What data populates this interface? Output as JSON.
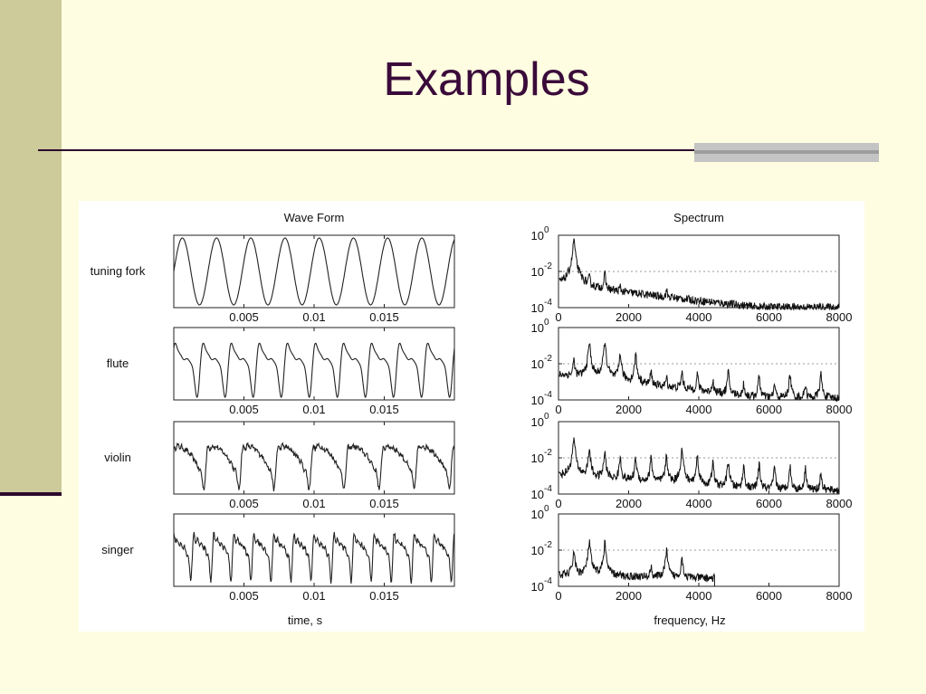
{
  "slide": {
    "title": "Examples",
    "colors": {
      "background": "#fefde1",
      "sidebar": "#cccb99",
      "title": "#3a0b3a"
    }
  },
  "chart_data": [
    {
      "type": "line",
      "title": "Wave Form",
      "xlabel": "time, s",
      "xlim": [
        0,
        0.02
      ],
      "xticks": [
        "0.005",
        "0.01",
        "0.015"
      ],
      "xtick_values": [
        0.005,
        0.01,
        0.015
      ],
      "rows": [
        {
          "label": "tuning fork",
          "cycles": 8.2,
          "harmonics": [
            1
          ]
        },
        {
          "label": "flute",
          "cycles": 10,
          "harmonics": [
            1,
            0.8,
            0.35,
            0.15
          ]
        },
        {
          "label": "violin",
          "cycles": 8,
          "harmonics": [
            1,
            0.5,
            0.33,
            0.25,
            0.2,
            0.16,
            0.14
          ]
        },
        {
          "label": "singer",
          "cycles": 14,
          "harmonics": [
            1,
            0.7,
            0.5,
            0.4,
            0.3
          ]
        }
      ]
    },
    {
      "type": "line",
      "title": "Spectrum",
      "xlabel": "frequency, Hz",
      "xlim": [
        0,
        8000
      ],
      "xticks": [
        "0",
        "2000",
        "4000",
        "6000",
        "8000"
      ],
      "xtick_values": [
        0,
        2000,
        4000,
        6000,
        8000
      ],
      "ylim_exponent": [
        -4,
        0
      ],
      "yticks": [
        {
          "base": "10",
          "exp": "0",
          "value": 0
        },
        {
          "base": "10",
          "exp": "-2",
          "value": -2
        },
        {
          "base": "10",
          "exp": "-4",
          "value": -4
        }
      ],
      "grid_lines_at_exponent": [
        -2
      ],
      "series": [
        {
          "fundamental_hz": 440,
          "peaks": [
            [
              440,
              -0.2
            ],
            [
              880,
              -2.5
            ],
            [
              1320,
              -2.2
            ],
            [
              1760,
              -3.2
            ],
            [
              3080,
              -3.3
            ]
          ],
          "floor_start": -2.8,
          "floor_end": -4.0,
          "cutoff_hz": 8000
        },
        {
          "fundamental_hz": 440,
          "peaks": [
            [
              440,
              -1.8
            ],
            [
              880,
              -0.8
            ],
            [
              1320,
              -0.8
            ],
            [
              1760,
              -1.4
            ],
            [
              2200,
              -1.5
            ],
            [
              2640,
              -2.5
            ],
            [
              3080,
              -2.9
            ],
            [
              3520,
              -2.5
            ],
            [
              3960,
              -2.6
            ],
            [
              4400,
              -3.0
            ],
            [
              4840,
              -2.5
            ],
            [
              5280,
              -3.2
            ],
            [
              5720,
              -2.7
            ],
            [
              6160,
              -3.2
            ],
            [
              6600,
              -2.6
            ],
            [
              7040,
              -3.2
            ],
            [
              7480,
              -2.6
            ]
          ],
          "floor_start": -2.6,
          "floor_end": -3.9,
          "cutoff_hz": 8000
        },
        {
          "fundamental_hz": 440,
          "peaks": [
            [
              440,
              -0.9
            ],
            [
              880,
              -1.5
            ],
            [
              1320,
              -1.7
            ],
            [
              1760,
              -2.0
            ],
            [
              2200,
              -2.0
            ],
            [
              2640,
              -2.0
            ],
            [
              3080,
              -1.9
            ],
            [
              3520,
              -1.5
            ],
            [
              3960,
              -1.9
            ],
            [
              4400,
              -2.3
            ],
            [
              4840,
              -2.2
            ],
            [
              5280,
              -2.5
            ],
            [
              5720,
              -2.4
            ],
            [
              6160,
              -2.6
            ],
            [
              6600,
              -2.5
            ],
            [
              7040,
              -2.6
            ],
            [
              7480,
              -2.9
            ]
          ],
          "floor_start": -3.0,
          "floor_end": -3.8,
          "cutoff_hz": 8000
        },
        {
          "fundamental_hz": 440,
          "peaks": [
            [
              440,
              -2.0
            ],
            [
              880,
              -1.5
            ],
            [
              1320,
              -1.6
            ],
            [
              2640,
              -3.0
            ],
            [
              3080,
              -2.0
            ],
            [
              3520,
              -2.4
            ]
          ],
          "floor_start": -3.4,
          "floor_end": -3.6,
          "cutoff_hz": 4450
        }
      ]
    }
  ]
}
